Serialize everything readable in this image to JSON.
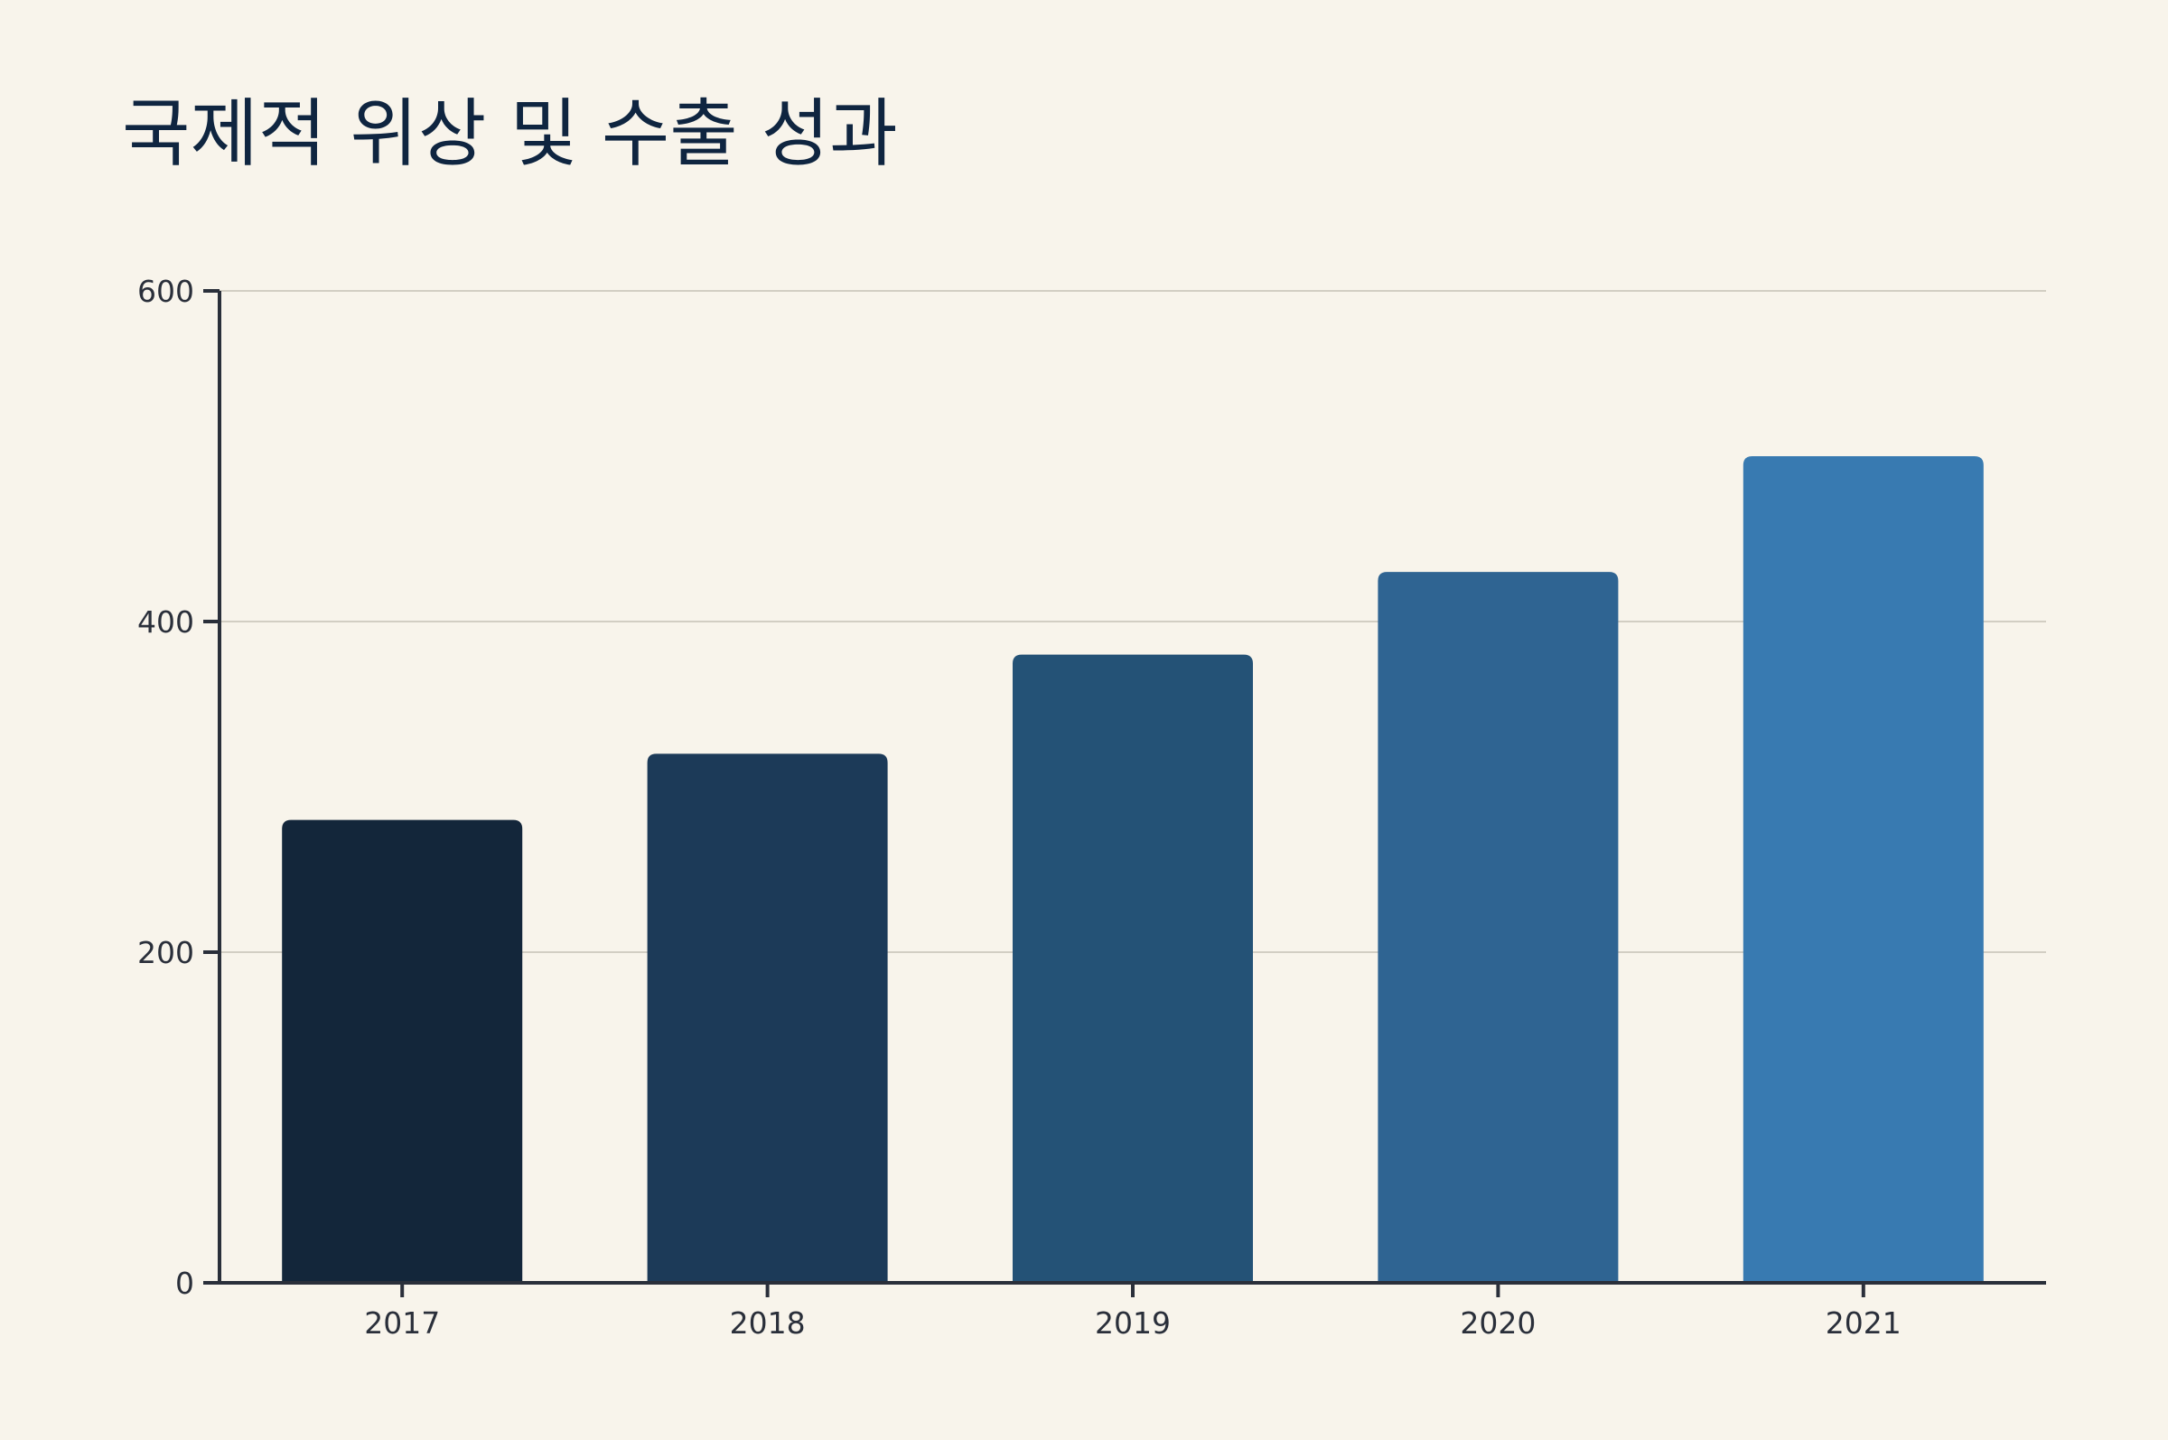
{
  "chart_data": {
    "type": "bar",
    "title": "국제적 위상 및 수출 성과",
    "xlabel": "",
    "ylabel": "",
    "categories": [
      "2017",
      "2018",
      "2019",
      "2020",
      "2021"
    ],
    "values": [
      280,
      320,
      380,
      430,
      500
    ],
    "ylim": [
      0,
      600
    ],
    "yticks": [
      0,
      200,
      400,
      600
    ],
    "grid": true,
    "legend": "none",
    "colors": [
      "#13263a",
      "#1c3a58",
      "#245276",
      "#2f6492",
      "#387ab1"
    ],
    "gridline_color": "#d2cec3",
    "axis_color": "#2a2f3a",
    "background": "#f8f4eb"
  }
}
